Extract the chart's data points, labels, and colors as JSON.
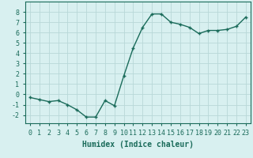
{
  "x": [
    0,
    1,
    2,
    3,
    4,
    5,
    6,
    7,
    8,
    9,
    10,
    11,
    12,
    13,
    14,
    15,
    16,
    17,
    18,
    19,
    20,
    21,
    22,
    23
  ],
  "y": [
    -0.3,
    -0.5,
    -0.7,
    -0.6,
    -1.0,
    -1.5,
    -2.2,
    -2.2,
    -0.6,
    -1.1,
    1.8,
    4.5,
    6.5,
    7.8,
    7.8,
    7.0,
    6.8,
    6.5,
    5.9,
    6.2,
    6.2,
    6.3,
    6.6,
    7.5
  ],
  "line_color": "#1a6b5a",
  "marker": "+",
  "marker_size": 3,
  "linewidth": 1.0,
  "xlabel": "Humidex (Indice chaleur)",
  "xlabel_fontsize": 7,
  "xlim": [
    -0.5,
    23.5
  ],
  "ylim": [
    -2.8,
    9.0
  ],
  "yticks": [
    -2,
    -1,
    0,
    1,
    2,
    3,
    4,
    5,
    6,
    7,
    8
  ],
  "xticks": [
    0,
    1,
    2,
    3,
    4,
    5,
    6,
    7,
    8,
    9,
    10,
    11,
    12,
    13,
    14,
    15,
    16,
    17,
    18,
    19,
    20,
    21,
    22,
    23
  ],
  "xtick_labels": [
    "0",
    "1",
    "2",
    "3",
    "4",
    "5",
    "6",
    "7",
    "8",
    "9",
    "10",
    "11",
    "12",
    "13",
    "14",
    "15",
    "16",
    "17",
    "18",
    "19",
    "20",
    "21",
    "22",
    "23"
  ],
  "bg_color": "#d8f0f0",
  "grid_color": "#b8d8d8",
  "tick_fontsize": 6,
  "spine_color": "#1a6b5a"
}
